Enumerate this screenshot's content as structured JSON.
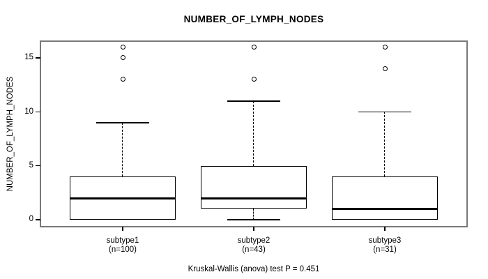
{
  "chart_data": {
    "type": "boxplot",
    "title": "NUMBER_OF_LYMPH_NODES",
    "ylabel": "NUMBER_OF_LYMPH_NODES",
    "xlabel": "",
    "footer": "Kruskal-Wallis (anova) test P = 0.451",
    "yticks": [
      0,
      5,
      10,
      15
    ],
    "ylim": [
      -0.65,
      16.55
    ],
    "grid": false,
    "legend": "none",
    "categories": [
      "subtype1",
      "subtype2",
      "subtype3"
    ],
    "groups": [
      {
        "label": "subtype1",
        "sublabel": "(n=100)",
        "n": 100,
        "whisker_low": 0,
        "q1": 0,
        "median": 2,
        "q3": 4,
        "whisker_high": 9,
        "outliers": [
          13,
          15,
          16
        ]
      },
      {
        "label": "subtype2",
        "sublabel": "(n=43)",
        "n": 43,
        "whisker_low": 0,
        "q1": 1,
        "median": 2,
        "q3": 5,
        "whisker_high": 11,
        "outliers": [
          13,
          16
        ]
      },
      {
        "label": "subtype3",
        "sublabel": "(n=31)",
        "n": 31,
        "whisker_low": 0,
        "q1": 0,
        "median": 1,
        "q3": 4,
        "whisker_high": 10,
        "outliers": [
          14,
          16
        ]
      }
    ]
  },
  "colors": {
    "frame": "#787878",
    "box_stroke": "#000000",
    "median": "#000000",
    "text": "#000000",
    "background": "#ffffff"
  }
}
